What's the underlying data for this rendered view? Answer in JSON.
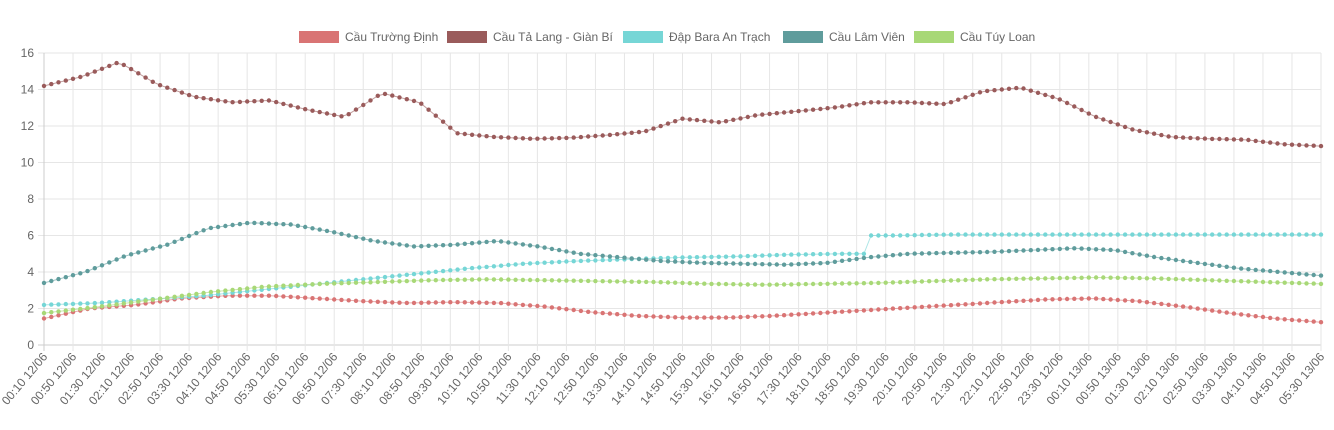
{
  "chart_data": {
    "type": "line",
    "ylim": [
      0,
      16
    ],
    "yticks": [
      0,
      2,
      4,
      6,
      8,
      10,
      12,
      14,
      16
    ],
    "grid": true,
    "legend_position": "top",
    "point_interval_minutes": 10,
    "x_labels": [
      "00:10 12/06",
      "00:50 12/06",
      "01:30 12/06",
      "02:10 12/06",
      "02:50 12/06",
      "03:30 12/06",
      "04:10 12/06",
      "04:50 12/06",
      "05:30 12/06",
      "06:10 12/06",
      "06:50 12/06",
      "07:30 12/06",
      "08:10 12/06",
      "08:50 12/06",
      "09:30 12/06",
      "10:10 12/06",
      "10:50 12/06",
      "11:30 12/06",
      "12:10 12/06",
      "12:50 12/06",
      "13:30 12/06",
      "14:10 12/06",
      "14:50 12/06",
      "15:30 12/06",
      "16:10 12/06",
      "16:50 12/06",
      "17:30 12/06",
      "18:10 12/06",
      "18:50 12/06",
      "19:30 12/06",
      "20:10 12/06",
      "20:50 12/06",
      "21:30 12/06",
      "22:10 12/06",
      "22:50 12/06",
      "23:30 12/06",
      "00:10 13/06",
      "00:50 13/06",
      "01:30 13/06",
      "02:10 13/06",
      "02:50 13/06",
      "03:30 13/06",
      "04:10 13/06",
      "04:50 13/06",
      "05:30 13/06"
    ],
    "series": [
      {
        "name": "Cầu Trường Định",
        "color": "#d97474",
        "values": [
          1.45,
          2.0,
          2.2,
          2.55,
          2.7,
          2.7,
          2.55,
          2.4,
          2.3,
          2.35,
          2.3,
          2.1,
          1.8,
          1.6,
          1.5,
          1.5,
          1.6,
          1.75,
          1.9,
          2.05,
          2.2,
          2.35,
          2.5,
          2.55,
          2.4,
          2.1,
          1.75,
          1.45,
          1.25
        ]
      },
      {
        "name": "Cầu Tả Lang - Giàn Bí",
        "color": "#9a5b5b",
        "values": [
          14.2,
          14.7,
          15.5,
          14.3,
          13.6,
          13.3,
          13.4,
          12.9,
          12.5,
          13.8,
          13.3,
          11.6,
          11.4,
          11.3,
          11.35,
          11.5,
          11.7,
          12.4,
          12.2,
          12.6,
          12.8,
          13.0,
          13.3,
          13.3,
          13.2,
          13.9,
          14.1,
          13.5,
          12.5,
          11.8,
          11.4,
          11.3,
          11.25,
          11.0,
          10.9
        ]
      },
      {
        "name": "Đập Bara An Trạch",
        "color": "#76d6d6",
        "values": [
          2.2,
          2.3,
          2.5,
          2.7,
          3.0,
          3.3,
          3.6,
          3.9,
          4.2,
          4.45,
          4.6,
          4.7,
          4.8,
          4.85,
          4.95,
          5.0,
          6.0,
          6.05,
          6.05,
          6.05,
          6.05,
          6.05,
          6.05,
          6.05,
          6.05
        ]
      },
      {
        "name": "Cầu Lâm Viên",
        "color": "#5f9c9c",
        "values": [
          3.4,
          4.0,
          4.9,
          5.5,
          6.4,
          6.7,
          6.6,
          6.2,
          5.7,
          5.4,
          5.5,
          5.7,
          5.4,
          5.0,
          4.8,
          4.6,
          4.5,
          4.45,
          4.4,
          4.5,
          4.8,
          5.0,
          5.05,
          5.1,
          5.2,
          5.3,
          5.2,
          4.8,
          4.5,
          4.2,
          4.0,
          3.8
        ]
      },
      {
        "name": "Cầu Túy Loan",
        "color": "#a8d877",
        "values": [
          1.75,
          2.1,
          2.5,
          2.9,
          3.2,
          3.35,
          3.45,
          3.55,
          3.6,
          3.55,
          3.5,
          3.45,
          3.35,
          3.3,
          3.35,
          3.4,
          3.5,
          3.6,
          3.65,
          3.7,
          3.65,
          3.55,
          3.45,
          3.35
        ]
      }
    ]
  }
}
